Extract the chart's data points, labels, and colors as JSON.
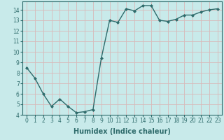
{
  "x": [
    0,
    1,
    2,
    3,
    4,
    5,
    6,
    7,
    8,
    9,
    10,
    11,
    12,
    13,
    14,
    15,
    16,
    17,
    18,
    19,
    20,
    21,
    22,
    23
  ],
  "y": [
    8.5,
    7.5,
    6.0,
    4.8,
    5.5,
    4.8,
    4.2,
    4.3,
    4.5,
    9.4,
    13.0,
    12.8,
    14.1,
    13.9,
    14.4,
    14.4,
    13.0,
    12.9,
    13.1,
    13.5,
    13.5,
    13.8,
    14.0,
    14.1
  ],
  "line_color": "#2e6b6b",
  "marker": "D",
  "marker_size": 2.0,
  "bg_color": "#c8eaea",
  "grid_color": "#d8b8b8",
  "xlabel": "Humidex (Indice chaleur)",
  "ylim": [
    4,
    14.8
  ],
  "xlim": [
    -0.5,
    23.5
  ],
  "yticks": [
    4,
    5,
    6,
    7,
    8,
    9,
    10,
    11,
    12,
    13,
    14
  ],
  "xticks": [
    0,
    1,
    2,
    3,
    4,
    5,
    6,
    7,
    8,
    9,
    10,
    11,
    12,
    13,
    14,
    15,
    16,
    17,
    18,
    19,
    20,
    21,
    22,
    23
  ],
  "tick_label_fontsize": 5.5,
  "xlabel_fontsize": 7.0,
  "line_width": 1.0
}
